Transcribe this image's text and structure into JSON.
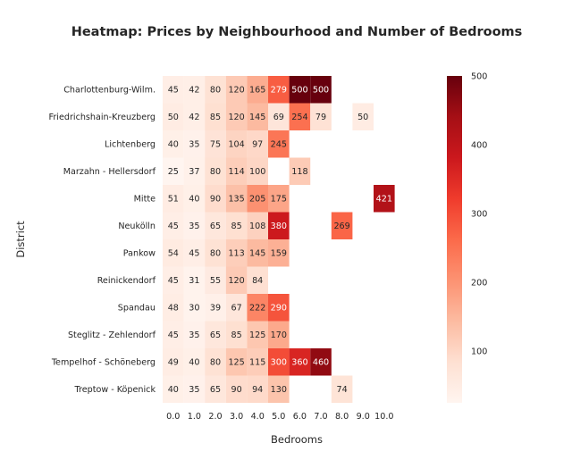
{
  "chart_data": {
    "type": "heatmap",
    "title": "Heatmap: Prices by Neighbourhood and Number of Bedrooms",
    "xlabel": "Bedrooms",
    "ylabel": "District",
    "x_categories": [
      "0.0",
      "1.0",
      "2.0",
      "3.0",
      "4.0",
      "5.0",
      "6.0",
      "7.0",
      "8.0",
      "9.0",
      "10.0"
    ],
    "y_categories": [
      "Charlottenburg-Wilm.",
      "Friedrichshain-Kreuzberg",
      "Lichtenberg",
      "Marzahn - Hellersdorf",
      "Mitte",
      "Neukölln",
      "Pankow",
      "Reinickendorf",
      "Spandau",
      "Steglitz - Zehlendorf",
      "Tempelhof - Schöneberg",
      "Treptow - Köpenick"
    ],
    "values": [
      [
        45,
        42,
        80,
        120,
        165,
        279,
        500,
        500,
        null,
        null,
        null
      ],
      [
        50,
        42,
        85,
        120,
        145,
        69,
        254,
        79,
        null,
        50,
        null
      ],
      [
        40,
        35,
        75,
        104,
        97,
        245,
        null,
        null,
        null,
        null,
        null
      ],
      [
        25,
        37,
        80,
        114,
        100,
        null,
        118,
        null,
        null,
        null,
        null
      ],
      [
        51,
        40,
        90,
        135,
        205,
        175,
        null,
        null,
        null,
        null,
        421
      ],
      [
        45,
        35,
        65,
        85,
        108,
        380,
        null,
        null,
        269,
        null,
        null
      ],
      [
        54,
        45,
        80,
        113,
        145,
        159,
        null,
        null,
        null,
        null,
        null
      ],
      [
        45,
        31,
        55,
        120,
        84,
        null,
        null,
        null,
        null,
        null,
        null
      ],
      [
        48,
        30,
        39,
        67,
        222,
        290,
        null,
        null,
        null,
        null,
        null
      ],
      [
        45,
        35,
        65,
        85,
        125,
        170,
        null,
        null,
        null,
        null,
        null
      ],
      [
        49,
        40,
        80,
        125,
        115,
        300,
        360,
        460,
        null,
        null,
        null
      ],
      [
        40,
        35,
        65,
        90,
        94,
        130,
        null,
        null,
        74,
        null,
        null
      ]
    ],
    "colorbar": {
      "colormap": "Reds",
      "vmin": 25,
      "vmax": 500,
      "ticks": [
        "100",
        "200",
        "300",
        "400",
        "500"
      ]
    },
    "grid": false,
    "legend": "colorbar-right"
  }
}
